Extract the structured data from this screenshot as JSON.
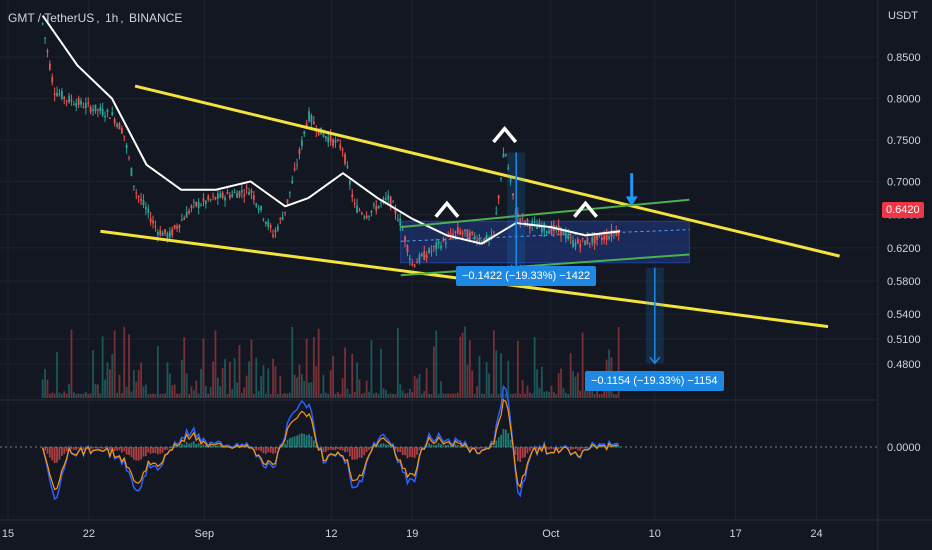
{
  "header": {
    "symbol": "GMT / TetherUS",
    "interval": "1h",
    "exchange": "BINANCE"
  },
  "price_axis": {
    "currency": "USDT",
    "current_price": "0.6420",
    "indicator_zero": "0.0000"
  },
  "measurements": [
    {
      "text": "−0.1422 (−19.33%) −1422"
    },
    {
      "text": "−0.1154 (−19.33%) −1154"
    }
  ],
  "colors": {
    "background": "#131722",
    "trendline": "#f5e33b",
    "channel": "#4caf50",
    "channel_fill": "#1e3a8a",
    "moving_average": "#ffffff",
    "measure": "#1e88e5",
    "up": "#26a69a",
    "down": "#ef5350",
    "macd": "#2962ff",
    "signal": "#ff9800",
    "price_badge": "#f23645"
  },
  "chart_data": {
    "type": "candlestick",
    "x_tick_labels": [
      "15",
      "22",
      "Sep",
      "12",
      "19",
      "Oct",
      "10",
      "17",
      "24"
    ],
    "y_tick_labels": [
      "0.8500",
      "0.8000",
      "0.7500",
      "0.7000",
      "0.6600",
      "0.6200",
      "0.5800",
      "0.5400",
      "0.5100",
      "0.4800"
    ],
    "ylim": [
      0.45,
      0.88
    ],
    "close_path": [
      {
        "x": "Aug 18",
        "y": 0.89
      },
      {
        "x": "Aug 19",
        "y": 0.81
      },
      {
        "x": "Aug 20",
        "y": 0.8
      },
      {
        "x": "Aug 22",
        "y": 0.79
      },
      {
        "x": "Aug 24",
        "y": 0.78
      },
      {
        "x": "Aug 25",
        "y": 0.76
      },
      {
        "x": "Aug 26",
        "y": 0.69
      },
      {
        "x": "Aug 28",
        "y": 0.64
      },
      {
        "x": "Aug 29",
        "y": 0.635
      },
      {
        "x": "Aug 31",
        "y": 0.67
      },
      {
        "x": "Sep 2",
        "y": 0.68
      },
      {
        "x": "Sep 5",
        "y": 0.69
      },
      {
        "x": "Sep 7",
        "y": 0.635
      },
      {
        "x": "Sep 8",
        "y": 0.665
      },
      {
        "x": "Sep 9",
        "y": 0.72
      },
      {
        "x": "Sep 10",
        "y": 0.78
      },
      {
        "x": "Sep 11",
        "y": 0.76
      },
      {
        "x": "Sep 13",
        "y": 0.74
      },
      {
        "x": "Sep 14",
        "y": 0.67
      },
      {
        "x": "Sep 15",
        "y": 0.66
      },
      {
        "x": "Sep 17",
        "y": 0.68
      },
      {
        "x": "Sep 18",
        "y": 0.65
      },
      {
        "x": "Sep 19",
        "y": 0.6
      },
      {
        "x": "Sep 21",
        "y": 0.62
      },
      {
        "x": "Sep 23",
        "y": 0.64
      },
      {
        "x": "Sep 25",
        "y": 0.63
      },
      {
        "x": "Sep 26",
        "y": 0.63
      },
      {
        "x": "Sep 27",
        "y": 0.74
      },
      {
        "x": "Sep 28",
        "y": 0.66
      },
      {
        "x": "Sep 29",
        "y": 0.65
      },
      {
        "x": "Sep 30",
        "y": 0.645
      },
      {
        "x": "Oct 2",
        "y": 0.64
      },
      {
        "x": "Oct 3",
        "y": 0.625
      },
      {
        "x": "Oct 5",
        "y": 0.63
      },
      {
        "x": "Oct 6",
        "y": 0.635
      },
      {
        "x": "Oct 7",
        "y": 0.642
      }
    ],
    "moving_average": [
      {
        "x": "Aug 18",
        "y": 0.9
      },
      {
        "x": "Aug 21",
        "y": 0.84
      },
      {
        "x": "Aug 24",
        "y": 0.8
      },
      {
        "x": "Aug 27",
        "y": 0.72
      },
      {
        "x": "Aug 30",
        "y": 0.69
      },
      {
        "x": "Sep 2",
        "y": 0.69
      },
      {
        "x": "Sep 5",
        "y": 0.7
      },
      {
        "x": "Sep 8",
        "y": 0.67
      },
      {
        "x": "Sep 10",
        "y": 0.68
      },
      {
        "x": "Sep 13",
        "y": 0.71
      },
      {
        "x": "Sep 16",
        "y": 0.68
      },
      {
        "x": "Sep 19",
        "y": 0.655
      },
      {
        "x": "Sep 22",
        "y": 0.635
      },
      {
        "x": "Sep 25",
        "y": 0.625
      },
      {
        "x": "Sep 28",
        "y": 0.65
      },
      {
        "x": "Oct 1",
        "y": 0.645
      },
      {
        "x": "Oct 4",
        "y": 0.635
      },
      {
        "x": "Oct 7",
        "y": 0.64
      }
    ],
    "lines": [
      {
        "name": "upper-trendline",
        "from": {
          "x": "Aug 26",
          "y": 0.815
        },
        "to": {
          "x": "Oct 26",
          "y": 0.61
        }
      },
      {
        "name": "lower-trendline",
        "from": {
          "x": "Aug 23",
          "y": 0.64
        },
        "to": {
          "x": "Oct 25",
          "y": 0.525
        }
      },
      {
        "name": "channel-upper",
        "from": {
          "x": "Sep 18",
          "y": 0.645
        },
        "to": {
          "x": "Oct 13",
          "y": 0.678
        }
      },
      {
        "name": "channel-lower",
        "from": {
          "x": "Sep 18",
          "y": 0.587
        },
        "to": {
          "x": "Oct 13",
          "y": 0.612
        }
      }
    ],
    "channel_box": {
      "x_from": "Sep 18",
      "x_to": "Oct 13",
      "y_from": 0.602,
      "y_to": 0.652
    },
    "measures": [
      {
        "x": "Sep 28",
        "y_from": 0.735,
        "y_to": 0.592
      },
      {
        "x": "Oct 10",
        "y_from": 0.596,
        "y_to": 0.481
      }
    ],
    "pattern_peaks": [
      {
        "x": "Sep 22",
        "y": 0.67
      },
      {
        "x": "Sep 27",
        "y": 0.76
      },
      {
        "x": "Oct 4",
        "y": 0.67
      }
    ],
    "down_arrow": {
      "x": "Oct 8",
      "y_from": 0.71,
      "y_to": 0.67
    }
  }
}
